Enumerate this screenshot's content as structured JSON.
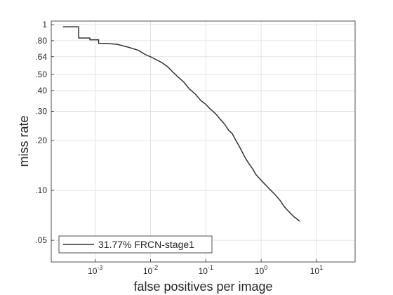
{
  "chart_data": {
    "type": "line",
    "xlabel": "false positives per image",
    "ylabel": "miss rate",
    "x_scale": "log",
    "y_scale": "log",
    "xlim": [
      0.00016,
      50
    ],
    "ylim": [
      0.037,
      1.05
    ],
    "grid": true,
    "legend_placement": "bottom-left",
    "x_ticks": [
      {
        "value": 0.001,
        "base": "10",
        "exp": "-3"
      },
      {
        "value": 0.01,
        "base": "10",
        "exp": "-2"
      },
      {
        "value": 0.1,
        "base": "10",
        "exp": "-1"
      },
      {
        "value": 1,
        "base": "10",
        "exp": "0"
      },
      {
        "value": 10,
        "base": "10",
        "exp": "1"
      }
    ],
    "y_ticks": [
      {
        "value": 1,
        "label": "1"
      },
      {
        "value": 0.8,
        "label": ".80"
      },
      {
        "value": 0.64,
        "label": ".64"
      },
      {
        "value": 0.5,
        "label": ".50"
      },
      {
        "value": 0.4,
        "label": ".40"
      },
      {
        "value": 0.3,
        "label": ".30"
      },
      {
        "value": 0.2,
        "label": ".20"
      },
      {
        "value": 0.1,
        "label": ".10"
      },
      {
        "value": 0.05,
        "label": ".05"
      }
    ],
    "series": [
      {
        "name": "31.77% FRCN-stage1",
        "color": "#333333",
        "x": [
          0.00026,
          0.0005,
          0.0005,
          0.0008,
          0.0008,
          0.00115,
          0.00115,
          0.0016,
          0.0025,
          0.004,
          0.006,
          0.008,
          0.01,
          0.012,
          0.016,
          0.02,
          0.025,
          0.03,
          0.04,
          0.05,
          0.065,
          0.08,
          0.1,
          0.12,
          0.15,
          0.18,
          0.22,
          0.26,
          0.3,
          0.35,
          0.4,
          0.5,
          0.6,
          0.7,
          0.8,
          1.0,
          1.2,
          1.5,
          1.8,
          2.2,
          2.6,
          3.0,
          3.5,
          4.0,
          4.5,
          5.0
        ],
        "y": [
          0.97,
          0.97,
          0.83,
          0.83,
          0.81,
          0.81,
          0.77,
          0.77,
          0.76,
          0.73,
          0.7,
          0.66,
          0.64,
          0.62,
          0.59,
          0.56,
          0.52,
          0.49,
          0.45,
          0.41,
          0.38,
          0.35,
          0.33,
          0.31,
          0.29,
          0.27,
          0.25,
          0.23,
          0.22,
          0.2,
          0.185,
          0.16,
          0.145,
          0.135,
          0.125,
          0.115,
          0.108,
          0.1,
          0.094,
          0.087,
          0.08,
          0.076,
          0.072,
          0.069,
          0.067,
          0.065
        ]
      }
    ]
  }
}
